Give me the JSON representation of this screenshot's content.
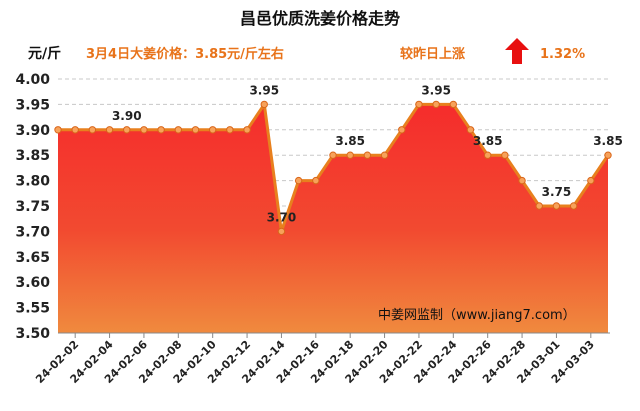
{
  "chart_data": {
    "type": "area",
    "title": "昌邑优质洗姜价格走势",
    "ylabel": "元/斤",
    "price_note": "3月4日大姜价格：3.85元/斤左右",
    "change_note": "较昨日上涨",
    "change_pct": "1.32%",
    "watermark": "中姜网监制（www.jiang7.com）",
    "ylim": [
      3.5,
      4.0
    ],
    "yticks": [
      "3.50",
      "3.55",
      "3.60",
      "3.65",
      "3.70",
      "3.75",
      "3.80",
      "3.85",
      "3.90",
      "3.95",
      "4.00"
    ],
    "x": [
      "24-02-01",
      "24-02-02",
      "24-02-03",
      "24-02-04",
      "24-02-05",
      "24-02-06",
      "24-02-07",
      "24-02-08",
      "24-02-09",
      "24-02-10",
      "24-02-11",
      "24-02-12",
      "24-02-13",
      "24-02-14",
      "24-02-15",
      "24-02-16",
      "24-02-17",
      "24-02-18",
      "24-02-19",
      "24-02-20",
      "24-02-21",
      "24-02-22",
      "24-02-23",
      "24-02-24",
      "24-02-25",
      "24-02-26",
      "24-02-27",
      "24-02-28",
      "24-02-29",
      "24-03-01",
      "24-03-02",
      "24-03-03",
      "24-03-04"
    ],
    "xtick_labels": [
      "24-02-02",
      "24-02-04",
      "24-02-06",
      "24-02-08",
      "24-02-10",
      "24-02-12",
      "24-02-14",
      "24-02-16",
      "24-02-18",
      "24-02-20",
      "24-02-22",
      "24-02-24",
      "24-02-26",
      "24-02-28",
      "24-03-01",
      "24-03-03"
    ],
    "series": [
      {
        "values": [
          3.9,
          3.9,
          3.9,
          3.9,
          3.9,
          3.9,
          3.9,
          3.9,
          3.9,
          3.9,
          3.9,
          3.9,
          3.95,
          3.7,
          3.8,
          3.8,
          3.85,
          3.85,
          3.85,
          3.85,
          3.9,
          3.95,
          3.95,
          3.95,
          3.9,
          3.85,
          3.85,
          3.8,
          3.75,
          3.75,
          3.75,
          3.8,
          3.85
        ]
      }
    ],
    "labeled_points": [
      {
        "index": 4,
        "label": "3.90"
      },
      {
        "index": 12,
        "label": "3.95"
      },
      {
        "index": 13,
        "label": "3.70"
      },
      {
        "index": 17,
        "label": "3.85"
      },
      {
        "index": 22,
        "label": "3.95"
      },
      {
        "index": 25,
        "label": "3.85"
      },
      {
        "index": 29,
        "label": "3.75"
      },
      {
        "index": 32,
        "label": "3.85"
      }
    ],
    "grid": true,
    "colors": {
      "line": "#e8801e",
      "area_top": "#f52c2c",
      "area_bottom": "#f07a3a",
      "accent": "#e8731a",
      "arrow": "#e81010"
    }
  }
}
